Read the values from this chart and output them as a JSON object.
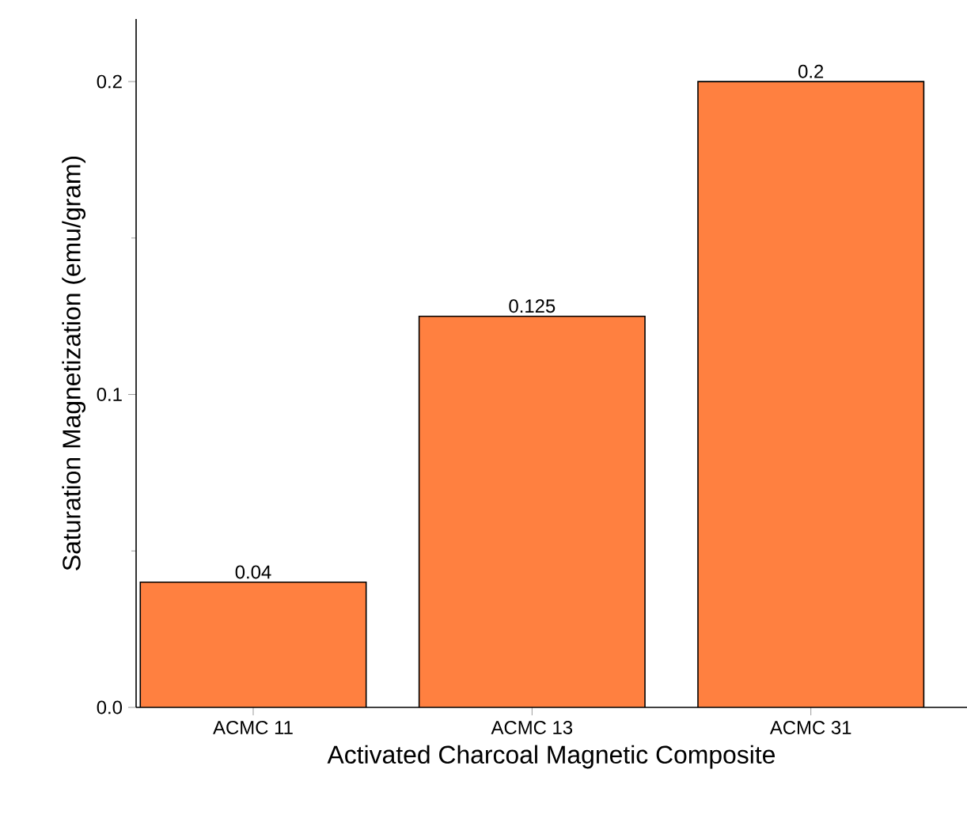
{
  "chart_data": {
    "type": "bar",
    "xlabel": "Activated Charcoal Magnetic Composite",
    "ylabel": "Saturation Magnetization (emu/gram)",
    "categories": [
      "ACMC 11",
      "ACMC 13",
      "ACMC 31"
    ],
    "values": [
      0.04,
      0.125,
      0.2
    ],
    "value_labels": [
      "0.04",
      "0.125",
      "0.2"
    ],
    "color": "#ff8040",
    "ylim": [
      0,
      0.22
    ],
    "yticks": [
      {
        "value": 0,
        "label": "0.0"
      },
      {
        "value": 0.1,
        "label": "0.1"
      },
      {
        "value": 0.2,
        "label": "0.2"
      }
    ]
  }
}
